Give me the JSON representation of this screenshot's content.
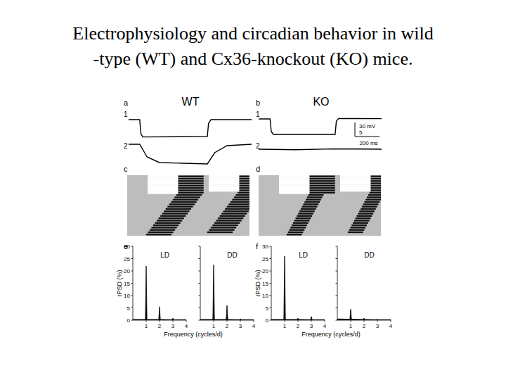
{
  "title": [
    "Electrophysiology and circadian behavior in wild",
    "-type (WT) and Cx36-knockout (KO) mice."
  ],
  "panels": [
    {
      "label": "a",
      "group": "WT",
      "traces": [
        {
          "label": "1",
          "t": [
            0,
            90,
            100,
            115,
            640,
            650,
            670,
            1000
          ],
          "v": [
            0,
            0,
            -30,
            -37,
            -36,
            -8,
            0,
            0
          ]
        },
        {
          "label": "2",
          "t": [
            0,
            90,
            150,
            250,
            640,
            700,
            800,
            1000
          ],
          "v": [
            0,
            0,
            -4.5,
            -6.5,
            -7,
            -3,
            -0.5,
            0
          ]
        }
      ]
    },
    {
      "label": "b",
      "group": "KO",
      "traces": [
        {
          "label": "1",
          "t": [
            0,
            93,
            103,
            120,
            622,
            632,
            650,
            1000
          ],
          "v": [
            0,
            0,
            -27,
            -33,
            -33,
            -5,
            1,
            0.5
          ]
        },
        {
          "label": "2",
          "t": [
            0,
            300,
            600,
            1000
          ],
          "v": [
            0,
            -0.2,
            0.1,
            0
          ]
        }
      ],
      "scale_bar": {
        "voltage_1": {
          "value": 30,
          "label": "30 mV"
        },
        "voltage_2": {
          "value": 5,
          "label": "5"
        },
        "time": {
          "value": 200,
          "label": "200 ms"
        }
      }
    },
    {
      "label": "c",
      "actogram": {
        "ld_days": 8,
        "light_on": 8,
        "light_off": 20,
        "onsets": [
          20,
          20,
          20,
          20,
          20,
          20,
          20,
          20,
          19.3,
          18.6,
          17.9,
          17.2,
          16.5,
          15.8,
          15.1,
          14.4,
          13.7,
          13.0,
          12.3,
          11.6,
          10.9,
          10.2,
          9.5,
          8.8,
          8.1,
          7.4
        ],
        "offsets": [
          30,
          30,
          30,
          30,
          30,
          30,
          30,
          30,
          29.3,
          28.6,
          27.9,
          27.2,
          26.5,
          25.8,
          25.1,
          24.4,
          23.7,
          23.0,
          22.3,
          21.6,
          20.9,
          20.2,
          19.5,
          18.8,
          18.1,
          17.4
        ]
      }
    },
    {
      "label": "d",
      "actogram": {
        "ld_days": 8,
        "light_on": 8,
        "light_off": 20,
        "onsets": [
          20,
          20,
          20,
          20,
          20,
          20,
          20,
          20,
          19.5,
          19,
          18.5,
          18,
          17.5,
          17,
          16.5,
          16,
          15.5,
          15,
          14.5,
          14,
          13.5,
          13,
          12.5,
          12,
          11.5,
          11
        ],
        "offsets": [
          30,
          30,
          30,
          30,
          30,
          30,
          30,
          30,
          25.5,
          25,
          24.5,
          24,
          23.5,
          23,
          22.5,
          22,
          21.5,
          21,
          20.5,
          20,
          19.5,
          19,
          18.5,
          18,
          17.5,
          17
        ]
      }
    },
    {
      "label": "e"
    },
    {
      "label": "f"
    }
  ],
  "chart_data": [
    {
      "type": "area",
      "title": "LD",
      "xlabel": "Frequency (cycles/d)",
      "ylabel": "rPSD (%)",
      "color": "#000000",
      "x": [
        0,
        0.94,
        1,
        1.06,
        1.94,
        2,
        2.06,
        2.94,
        3,
        3.06,
        4
      ],
      "values": [
        0.3,
        0.3,
        22,
        0.3,
        0.3,
        5.5,
        0.3,
        0.2,
        0.8,
        0.2,
        0.2
      ],
      "xlim": [
        0,
        4
      ],
      "xticks": [
        1,
        2,
        3,
        4
      ],
      "ylim": [
        0,
        30
      ],
      "yticks": [
        0,
        5,
        10,
        15,
        20,
        25,
        30
      ]
    },
    {
      "type": "area",
      "title": "DD",
      "color": "#000000",
      "tick_labels": "x",
      "x": [
        0,
        0.94,
        1,
        1.06,
        1.94,
        2,
        2.06,
        2.94,
        3,
        3.06,
        4
      ],
      "values": [
        0.3,
        0.3,
        22.5,
        0.3,
        0.3,
        6,
        0.3,
        0.2,
        0.6,
        0.2,
        0.2
      ],
      "xlim": [
        0,
        4
      ],
      "xticks": [
        1,
        2,
        3,
        4
      ],
      "ylim": [
        0,
        30
      ],
      "yticks": [
        0,
        5,
        10,
        15,
        20,
        25,
        30
      ]
    },
    {
      "type": "area",
      "title": "LD",
      "xlabel": "Frequency (cycles/d)",
      "ylabel": "rPSD (%)",
      "color": "#000000",
      "x": [
        0,
        0.94,
        1,
        1.06,
        1.94,
        2,
        2.06,
        2.94,
        3,
        3.06,
        4
      ],
      "values": [
        0.3,
        0.3,
        26,
        0.3,
        0.3,
        0.8,
        0.3,
        0.2,
        1.5,
        0.2,
        0.2
      ],
      "xlim": [
        0,
        4
      ],
      "xticks": [
        1,
        2,
        3,
        4
      ],
      "ylim": [
        0,
        30
      ],
      "yticks": [
        0,
        5,
        10,
        15,
        20,
        25,
        30
      ]
    },
    {
      "type": "area",
      "title": "DD",
      "color": "#000000",
      "tick_labels": "x",
      "x": [
        0,
        0.94,
        1,
        1.06,
        1.94,
        2,
        2.06,
        2.94,
        3,
        3.06,
        4
      ],
      "values": [
        0.5,
        0.4,
        4.5,
        0.4,
        0.3,
        0.8,
        0.3,
        0.2,
        0.4,
        0.2,
        0.2
      ],
      "xlim": [
        0,
        4
      ],
      "xticks": [
        1,
        2,
        3,
        4
      ],
      "ylim": [
        0,
        30
      ],
      "yticks": [
        0,
        5,
        10,
        15,
        20,
        25,
        30
      ]
    }
  ]
}
